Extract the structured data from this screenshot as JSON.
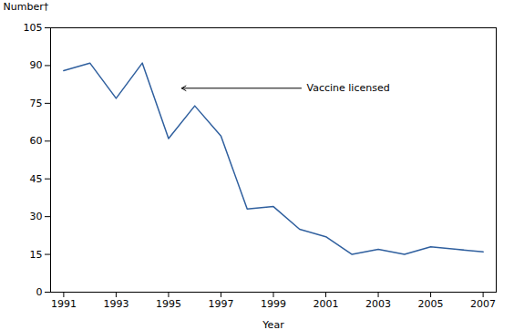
{
  "chart_data": {
    "type": "line",
    "x": [
      1991,
      1992,
      1993,
      1994,
      1995,
      1996,
      1997,
      1998,
      1999,
      2000,
      2001,
      2002,
      2003,
      2004,
      2005,
      2006,
      2007
    ],
    "values": [
      88,
      91,
      77,
      91,
      61,
      74,
      62,
      33,
      34,
      25,
      22,
      15,
      17,
      15,
      18,
      17,
      16
    ],
    "color": "#2f5f9e",
    "xlabel": "Year",
    "ylabel": "Number†",
    "xlim": [
      1990.5,
      2007.5
    ],
    "xticks": [
      1991,
      1993,
      1995,
      1997,
      1999,
      2001,
      2003,
      2005,
      2007
    ],
    "ylim": [
      0,
      105
    ],
    "yticks": [
      0,
      15,
      30,
      45,
      60,
      75,
      90,
      105
    ],
    "grid": false,
    "annotations": [
      {
        "text": "Vaccine licensed",
        "x": 2000.2,
        "y": 81,
        "arrow_x": 1995.5,
        "arrow_y": 81
      }
    ]
  }
}
